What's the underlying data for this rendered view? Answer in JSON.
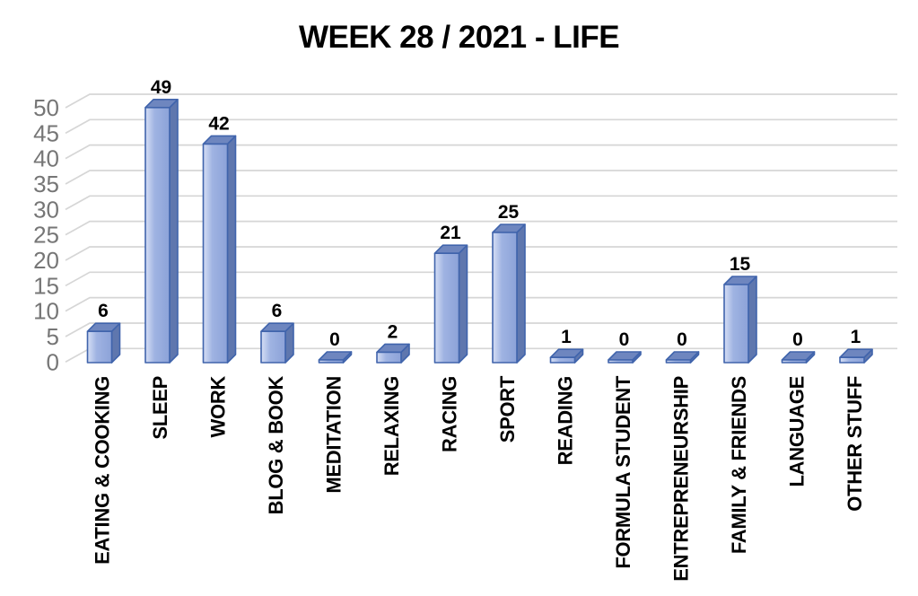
{
  "chart_data": {
    "type": "bar",
    "style": "3d-clustered-column",
    "title": "WEEK 28 / 2021 - LIFE",
    "categories": [
      "EATING & COOKING",
      "SLEEP",
      "WORK",
      "BLOG & BOOK",
      "MEDITATION",
      "RELAXING",
      "RACING",
      "SPORT",
      "READING",
      "FORMULA STUDENT",
      "ENTREPRENEURSHIP",
      "FAMILY & FRIENDS",
      "LANGUAGE",
      "OTHER STUFF"
    ],
    "values": [
      6,
      49,
      42,
      6,
      0,
      2,
      21,
      25,
      1,
      0,
      0,
      15,
      0,
      1
    ],
    "data_labels": [
      "6",
      "49",
      "42",
      "6",
      "0",
      "2",
      "21",
      "25",
      "1",
      "0",
      "0",
      "15",
      "0",
      "1"
    ],
    "xlabel": "",
    "ylabel": "",
    "ylim": [
      0,
      50
    ],
    "yticks": [
      0,
      5,
      10,
      15,
      20,
      25,
      30,
      35,
      40,
      45,
      50
    ],
    "grid": true,
    "legend": "none",
    "colors": {
      "background": "#FFFFFF",
      "title": "#000000",
      "gridline": "#D6D6D6",
      "tick_label": "#767676",
      "data_label": "#000000",
      "category_label": "#000000",
      "bar_front_light": "#CBD6F1",
      "bar_front": "#9FB3E2",
      "bar_front_dark": "#8CA2D8",
      "bar_side": "#5F77AE",
      "bar_top": "#6E86BF",
      "bar_border": "#4064AC"
    }
  }
}
